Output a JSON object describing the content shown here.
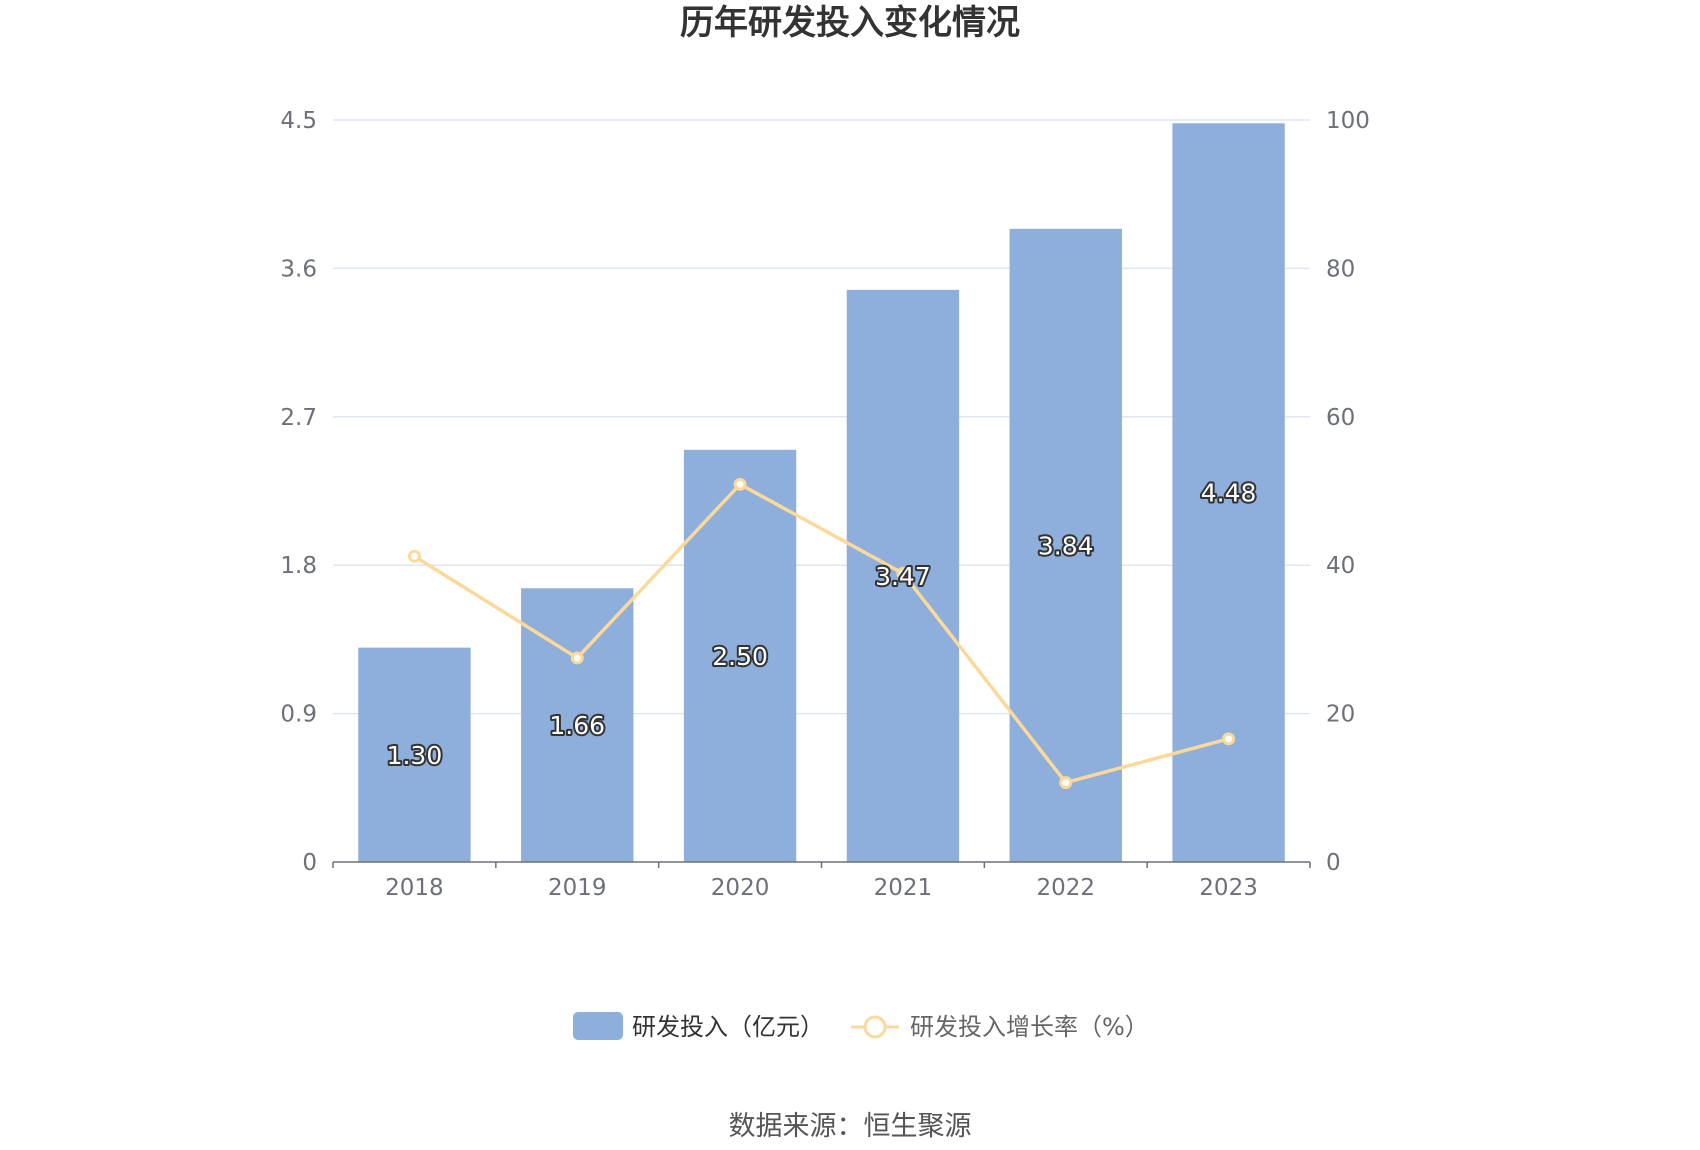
{
  "chart_data": {
    "type": "bar",
    "title": "历年研发投入变化情况",
    "categories": [
      "2018",
      "2019",
      "2020",
      "2021",
      "2022",
      "2023"
    ],
    "series": [
      {
        "name": "研发投入（亿元）",
        "type": "bar",
        "axis": "left",
        "values": [
          1.3,
          1.66,
          2.5,
          3.47,
          3.84,
          4.48
        ],
        "labels": [
          "1.30",
          "1.66",
          "2.50",
          "3.47",
          "3.84",
          "4.48"
        ],
        "color": "#8eaedb"
      },
      {
        "name": "研发投入增长率（%）",
        "type": "line",
        "axis": "right",
        "values": [
          41.2,
          27.5,
          50.9,
          38.9,
          10.7,
          16.6
        ],
        "color": "#fcd99a"
      }
    ],
    "y_left": {
      "min": 0,
      "max": 4.5,
      "ticks": [
        "0",
        "0.9",
        "1.8",
        "2.7",
        "3.6",
        "4.5"
      ]
    },
    "y_right": {
      "min": 0,
      "max": 100,
      "ticks": [
        "0",
        "20",
        "40",
        "60",
        "80",
        "100"
      ]
    },
    "grid": true,
    "legend_position": "bottom"
  },
  "source": "数据来源：恒生聚源",
  "colors": {
    "grid": "#e0e6f1",
    "axis": "#6e7079"
  }
}
